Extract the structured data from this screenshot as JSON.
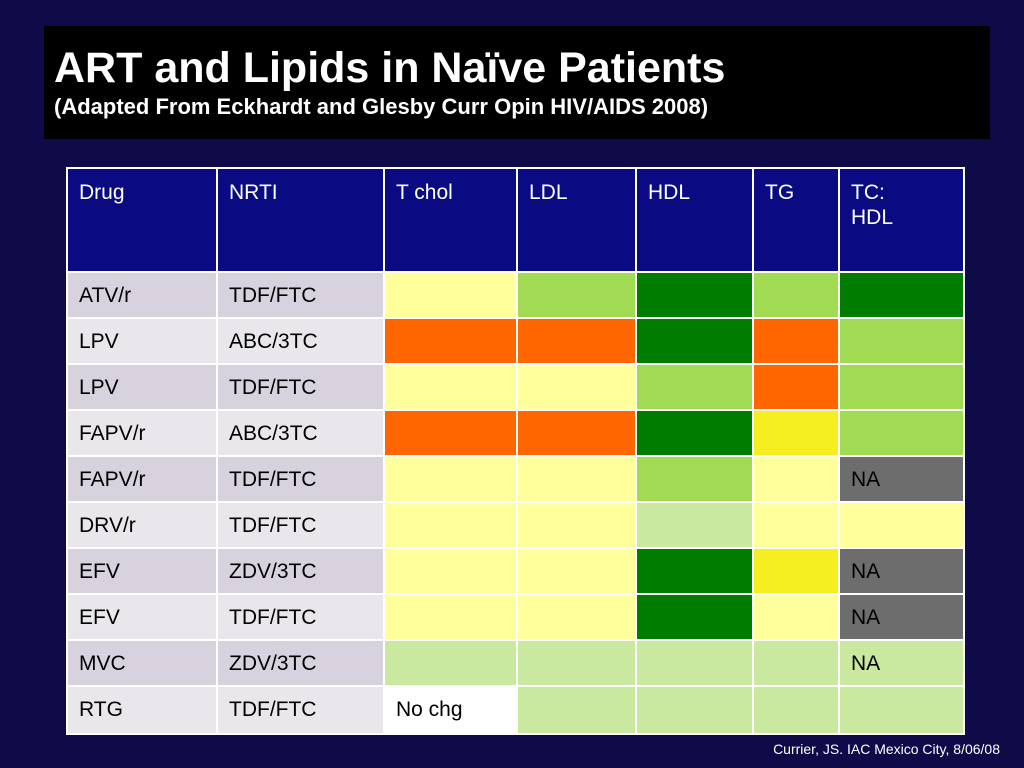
{
  "slide": {
    "title": "ART and Lipids in Naïve Patients",
    "subtitle": "(Adapted From Eckhardt and Glesby Curr Opin HIV/AIDS 2008)",
    "footer": "Currier, JS. IAC Mexico City, 8/06/08"
  },
  "table": {
    "headers": [
      "Drug",
      "NRTI",
      "T chol",
      "LDL",
      "HDL",
      "TG",
      "TC: HDL"
    ],
    "header_tc_line1": "TC:",
    "header_tc_line2": "HDL",
    "rows": [
      {
        "drug": "ATV/r",
        "nrti": "TDF/FTC",
        "cells": [
          {
            "color": "lightyellow",
            "text": ""
          },
          {
            "color": "green",
            "text": ""
          },
          {
            "color": "darkgreen",
            "text": ""
          },
          {
            "color": "green",
            "text": ""
          },
          {
            "color": "darkgreen",
            "text": ""
          }
        ]
      },
      {
        "drug": "LPV",
        "nrti": "ABC/3TC",
        "cells": [
          {
            "color": "orange",
            "text": ""
          },
          {
            "color": "orange",
            "text": ""
          },
          {
            "color": "darkgreen",
            "text": ""
          },
          {
            "color": "orange",
            "text": ""
          },
          {
            "color": "green",
            "text": ""
          }
        ]
      },
      {
        "drug": "LPV",
        "nrti": "TDF/FTC",
        "cells": [
          {
            "color": "lightyellow",
            "text": ""
          },
          {
            "color": "lightyellow",
            "text": ""
          },
          {
            "color": "green",
            "text": ""
          },
          {
            "color": "orange",
            "text": ""
          },
          {
            "color": "green",
            "text": ""
          }
        ]
      },
      {
        "drug": "FAPV/r",
        "nrti": "ABC/3TC",
        "cells": [
          {
            "color": "orange",
            "text": ""
          },
          {
            "color": "orange",
            "text": ""
          },
          {
            "color": "darkgreen",
            "text": ""
          },
          {
            "color": "yellow",
            "text": ""
          },
          {
            "color": "green",
            "text": ""
          }
        ]
      },
      {
        "drug": "FAPV/r",
        "nrti": "TDF/FTC",
        "cells": [
          {
            "color": "lightyellow",
            "text": ""
          },
          {
            "color": "lightyellow",
            "text": ""
          },
          {
            "color": "green",
            "text": ""
          },
          {
            "color": "lightyellow",
            "text": ""
          },
          {
            "color": "gray",
            "text": "NA"
          }
        ]
      },
      {
        "drug": "DRV/r",
        "nrti": "TDF/FTC",
        "cells": [
          {
            "color": "lightyellow",
            "text": ""
          },
          {
            "color": "lightyellow",
            "text": ""
          },
          {
            "color": "palegreen",
            "text": ""
          },
          {
            "color": "lightyellow",
            "text": ""
          },
          {
            "color": "lightyellow",
            "text": ""
          }
        ]
      },
      {
        "drug": "EFV",
        "nrti": "ZDV/3TC",
        "cells": [
          {
            "color": "lightyellow",
            "text": ""
          },
          {
            "color": "lightyellow",
            "text": ""
          },
          {
            "color": "darkgreen",
            "text": ""
          },
          {
            "color": "yellow",
            "text": ""
          },
          {
            "color": "gray",
            "text": "NA"
          }
        ]
      },
      {
        "drug": "EFV",
        "nrti": "TDF/FTC",
        "cells": [
          {
            "color": "lightyellow",
            "text": ""
          },
          {
            "color": "lightyellow",
            "text": ""
          },
          {
            "color": "darkgreen",
            "text": ""
          },
          {
            "color": "lightyellow",
            "text": ""
          },
          {
            "color": "gray",
            "text": "NA"
          }
        ]
      },
      {
        "drug": "MVC",
        "nrti": "ZDV/3TC",
        "cells": [
          {
            "color": "palegreen",
            "text": ""
          },
          {
            "color": "palegreen",
            "text": ""
          },
          {
            "color": "palegreen",
            "text": ""
          },
          {
            "color": "palegreen",
            "text": ""
          },
          {
            "color": "pale-na",
            "text": "NA"
          }
        ]
      },
      {
        "drug": "RTG",
        "nrti": "TDF/FTC",
        "cells": [
          {
            "color": "none",
            "text": "No chg"
          },
          {
            "color": "palegreen",
            "text": ""
          },
          {
            "color": "palegreen",
            "text": ""
          },
          {
            "color": "palegreen",
            "text": ""
          },
          {
            "color": "palegreen",
            "text": ""
          }
        ]
      }
    ]
  },
  "colors": {
    "background": "#0f0b48",
    "header": "#0a0a82",
    "orange": "#ff6600",
    "darkgreen": "#007c00",
    "green": "#a1db53",
    "palegreen": "#c9e9a0",
    "lightyellow": "#ffff9c",
    "yellow": "#f5ee21",
    "gray": "#6d6d6d"
  }
}
